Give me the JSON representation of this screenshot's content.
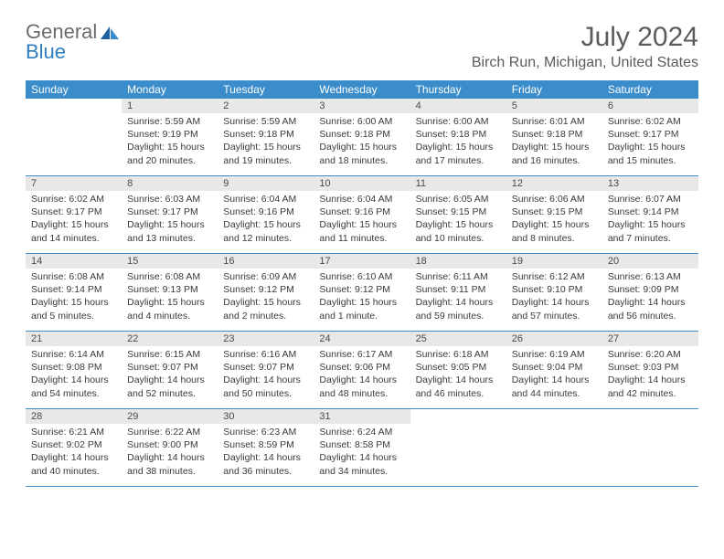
{
  "logo": {
    "word1": "General",
    "word2": "Blue"
  },
  "title": "July 2024",
  "location": "Birch Run, Michigan, United States",
  "colors": {
    "header_bg": "#3a8ccb",
    "header_text": "#ffffff",
    "daynum_bg": "#e8e8e8",
    "text": "#3a3a3a",
    "rule": "#3a8ccb",
    "logo_gray": "#6b6b6b",
    "logo_blue": "#2f7ec2",
    "title_color": "#5b5b5b"
  },
  "dow": [
    "Sunday",
    "Monday",
    "Tuesday",
    "Wednesday",
    "Thursday",
    "Friday",
    "Saturday"
  ],
  "weeks": [
    [
      {
        "n": "",
        "sr": "",
        "ss": "",
        "dl": ""
      },
      {
        "n": "1",
        "sr": "Sunrise: 5:59 AM",
        "ss": "Sunset: 9:19 PM",
        "dl": "Daylight: 15 hours and 20 minutes."
      },
      {
        "n": "2",
        "sr": "Sunrise: 5:59 AM",
        "ss": "Sunset: 9:18 PM",
        "dl": "Daylight: 15 hours and 19 minutes."
      },
      {
        "n": "3",
        "sr": "Sunrise: 6:00 AM",
        "ss": "Sunset: 9:18 PM",
        "dl": "Daylight: 15 hours and 18 minutes."
      },
      {
        "n": "4",
        "sr": "Sunrise: 6:00 AM",
        "ss": "Sunset: 9:18 PM",
        "dl": "Daylight: 15 hours and 17 minutes."
      },
      {
        "n": "5",
        "sr": "Sunrise: 6:01 AM",
        "ss": "Sunset: 9:18 PM",
        "dl": "Daylight: 15 hours and 16 minutes."
      },
      {
        "n": "6",
        "sr": "Sunrise: 6:02 AM",
        "ss": "Sunset: 9:17 PM",
        "dl": "Daylight: 15 hours and 15 minutes."
      }
    ],
    [
      {
        "n": "7",
        "sr": "Sunrise: 6:02 AM",
        "ss": "Sunset: 9:17 PM",
        "dl": "Daylight: 15 hours and 14 minutes."
      },
      {
        "n": "8",
        "sr": "Sunrise: 6:03 AM",
        "ss": "Sunset: 9:17 PM",
        "dl": "Daylight: 15 hours and 13 minutes."
      },
      {
        "n": "9",
        "sr": "Sunrise: 6:04 AM",
        "ss": "Sunset: 9:16 PM",
        "dl": "Daylight: 15 hours and 12 minutes."
      },
      {
        "n": "10",
        "sr": "Sunrise: 6:04 AM",
        "ss": "Sunset: 9:16 PM",
        "dl": "Daylight: 15 hours and 11 minutes."
      },
      {
        "n": "11",
        "sr": "Sunrise: 6:05 AM",
        "ss": "Sunset: 9:15 PM",
        "dl": "Daylight: 15 hours and 10 minutes."
      },
      {
        "n": "12",
        "sr": "Sunrise: 6:06 AM",
        "ss": "Sunset: 9:15 PM",
        "dl": "Daylight: 15 hours and 8 minutes."
      },
      {
        "n": "13",
        "sr": "Sunrise: 6:07 AM",
        "ss": "Sunset: 9:14 PM",
        "dl": "Daylight: 15 hours and 7 minutes."
      }
    ],
    [
      {
        "n": "14",
        "sr": "Sunrise: 6:08 AM",
        "ss": "Sunset: 9:14 PM",
        "dl": "Daylight: 15 hours and 5 minutes."
      },
      {
        "n": "15",
        "sr": "Sunrise: 6:08 AM",
        "ss": "Sunset: 9:13 PM",
        "dl": "Daylight: 15 hours and 4 minutes."
      },
      {
        "n": "16",
        "sr": "Sunrise: 6:09 AM",
        "ss": "Sunset: 9:12 PM",
        "dl": "Daylight: 15 hours and 2 minutes."
      },
      {
        "n": "17",
        "sr": "Sunrise: 6:10 AM",
        "ss": "Sunset: 9:12 PM",
        "dl": "Daylight: 15 hours and 1 minute."
      },
      {
        "n": "18",
        "sr": "Sunrise: 6:11 AM",
        "ss": "Sunset: 9:11 PM",
        "dl": "Daylight: 14 hours and 59 minutes."
      },
      {
        "n": "19",
        "sr": "Sunrise: 6:12 AM",
        "ss": "Sunset: 9:10 PM",
        "dl": "Daylight: 14 hours and 57 minutes."
      },
      {
        "n": "20",
        "sr": "Sunrise: 6:13 AM",
        "ss": "Sunset: 9:09 PM",
        "dl": "Daylight: 14 hours and 56 minutes."
      }
    ],
    [
      {
        "n": "21",
        "sr": "Sunrise: 6:14 AM",
        "ss": "Sunset: 9:08 PM",
        "dl": "Daylight: 14 hours and 54 minutes."
      },
      {
        "n": "22",
        "sr": "Sunrise: 6:15 AM",
        "ss": "Sunset: 9:07 PM",
        "dl": "Daylight: 14 hours and 52 minutes."
      },
      {
        "n": "23",
        "sr": "Sunrise: 6:16 AM",
        "ss": "Sunset: 9:07 PM",
        "dl": "Daylight: 14 hours and 50 minutes."
      },
      {
        "n": "24",
        "sr": "Sunrise: 6:17 AM",
        "ss": "Sunset: 9:06 PM",
        "dl": "Daylight: 14 hours and 48 minutes."
      },
      {
        "n": "25",
        "sr": "Sunrise: 6:18 AM",
        "ss": "Sunset: 9:05 PM",
        "dl": "Daylight: 14 hours and 46 minutes."
      },
      {
        "n": "26",
        "sr": "Sunrise: 6:19 AM",
        "ss": "Sunset: 9:04 PM",
        "dl": "Daylight: 14 hours and 44 minutes."
      },
      {
        "n": "27",
        "sr": "Sunrise: 6:20 AM",
        "ss": "Sunset: 9:03 PM",
        "dl": "Daylight: 14 hours and 42 minutes."
      }
    ],
    [
      {
        "n": "28",
        "sr": "Sunrise: 6:21 AM",
        "ss": "Sunset: 9:02 PM",
        "dl": "Daylight: 14 hours and 40 minutes."
      },
      {
        "n": "29",
        "sr": "Sunrise: 6:22 AM",
        "ss": "Sunset: 9:00 PM",
        "dl": "Daylight: 14 hours and 38 minutes."
      },
      {
        "n": "30",
        "sr": "Sunrise: 6:23 AM",
        "ss": "Sunset: 8:59 PM",
        "dl": "Daylight: 14 hours and 36 minutes."
      },
      {
        "n": "31",
        "sr": "Sunrise: 6:24 AM",
        "ss": "Sunset: 8:58 PM",
        "dl": "Daylight: 14 hours and 34 minutes."
      },
      {
        "n": "",
        "sr": "",
        "ss": "",
        "dl": ""
      },
      {
        "n": "",
        "sr": "",
        "ss": "",
        "dl": ""
      },
      {
        "n": "",
        "sr": "",
        "ss": "",
        "dl": ""
      }
    ]
  ]
}
